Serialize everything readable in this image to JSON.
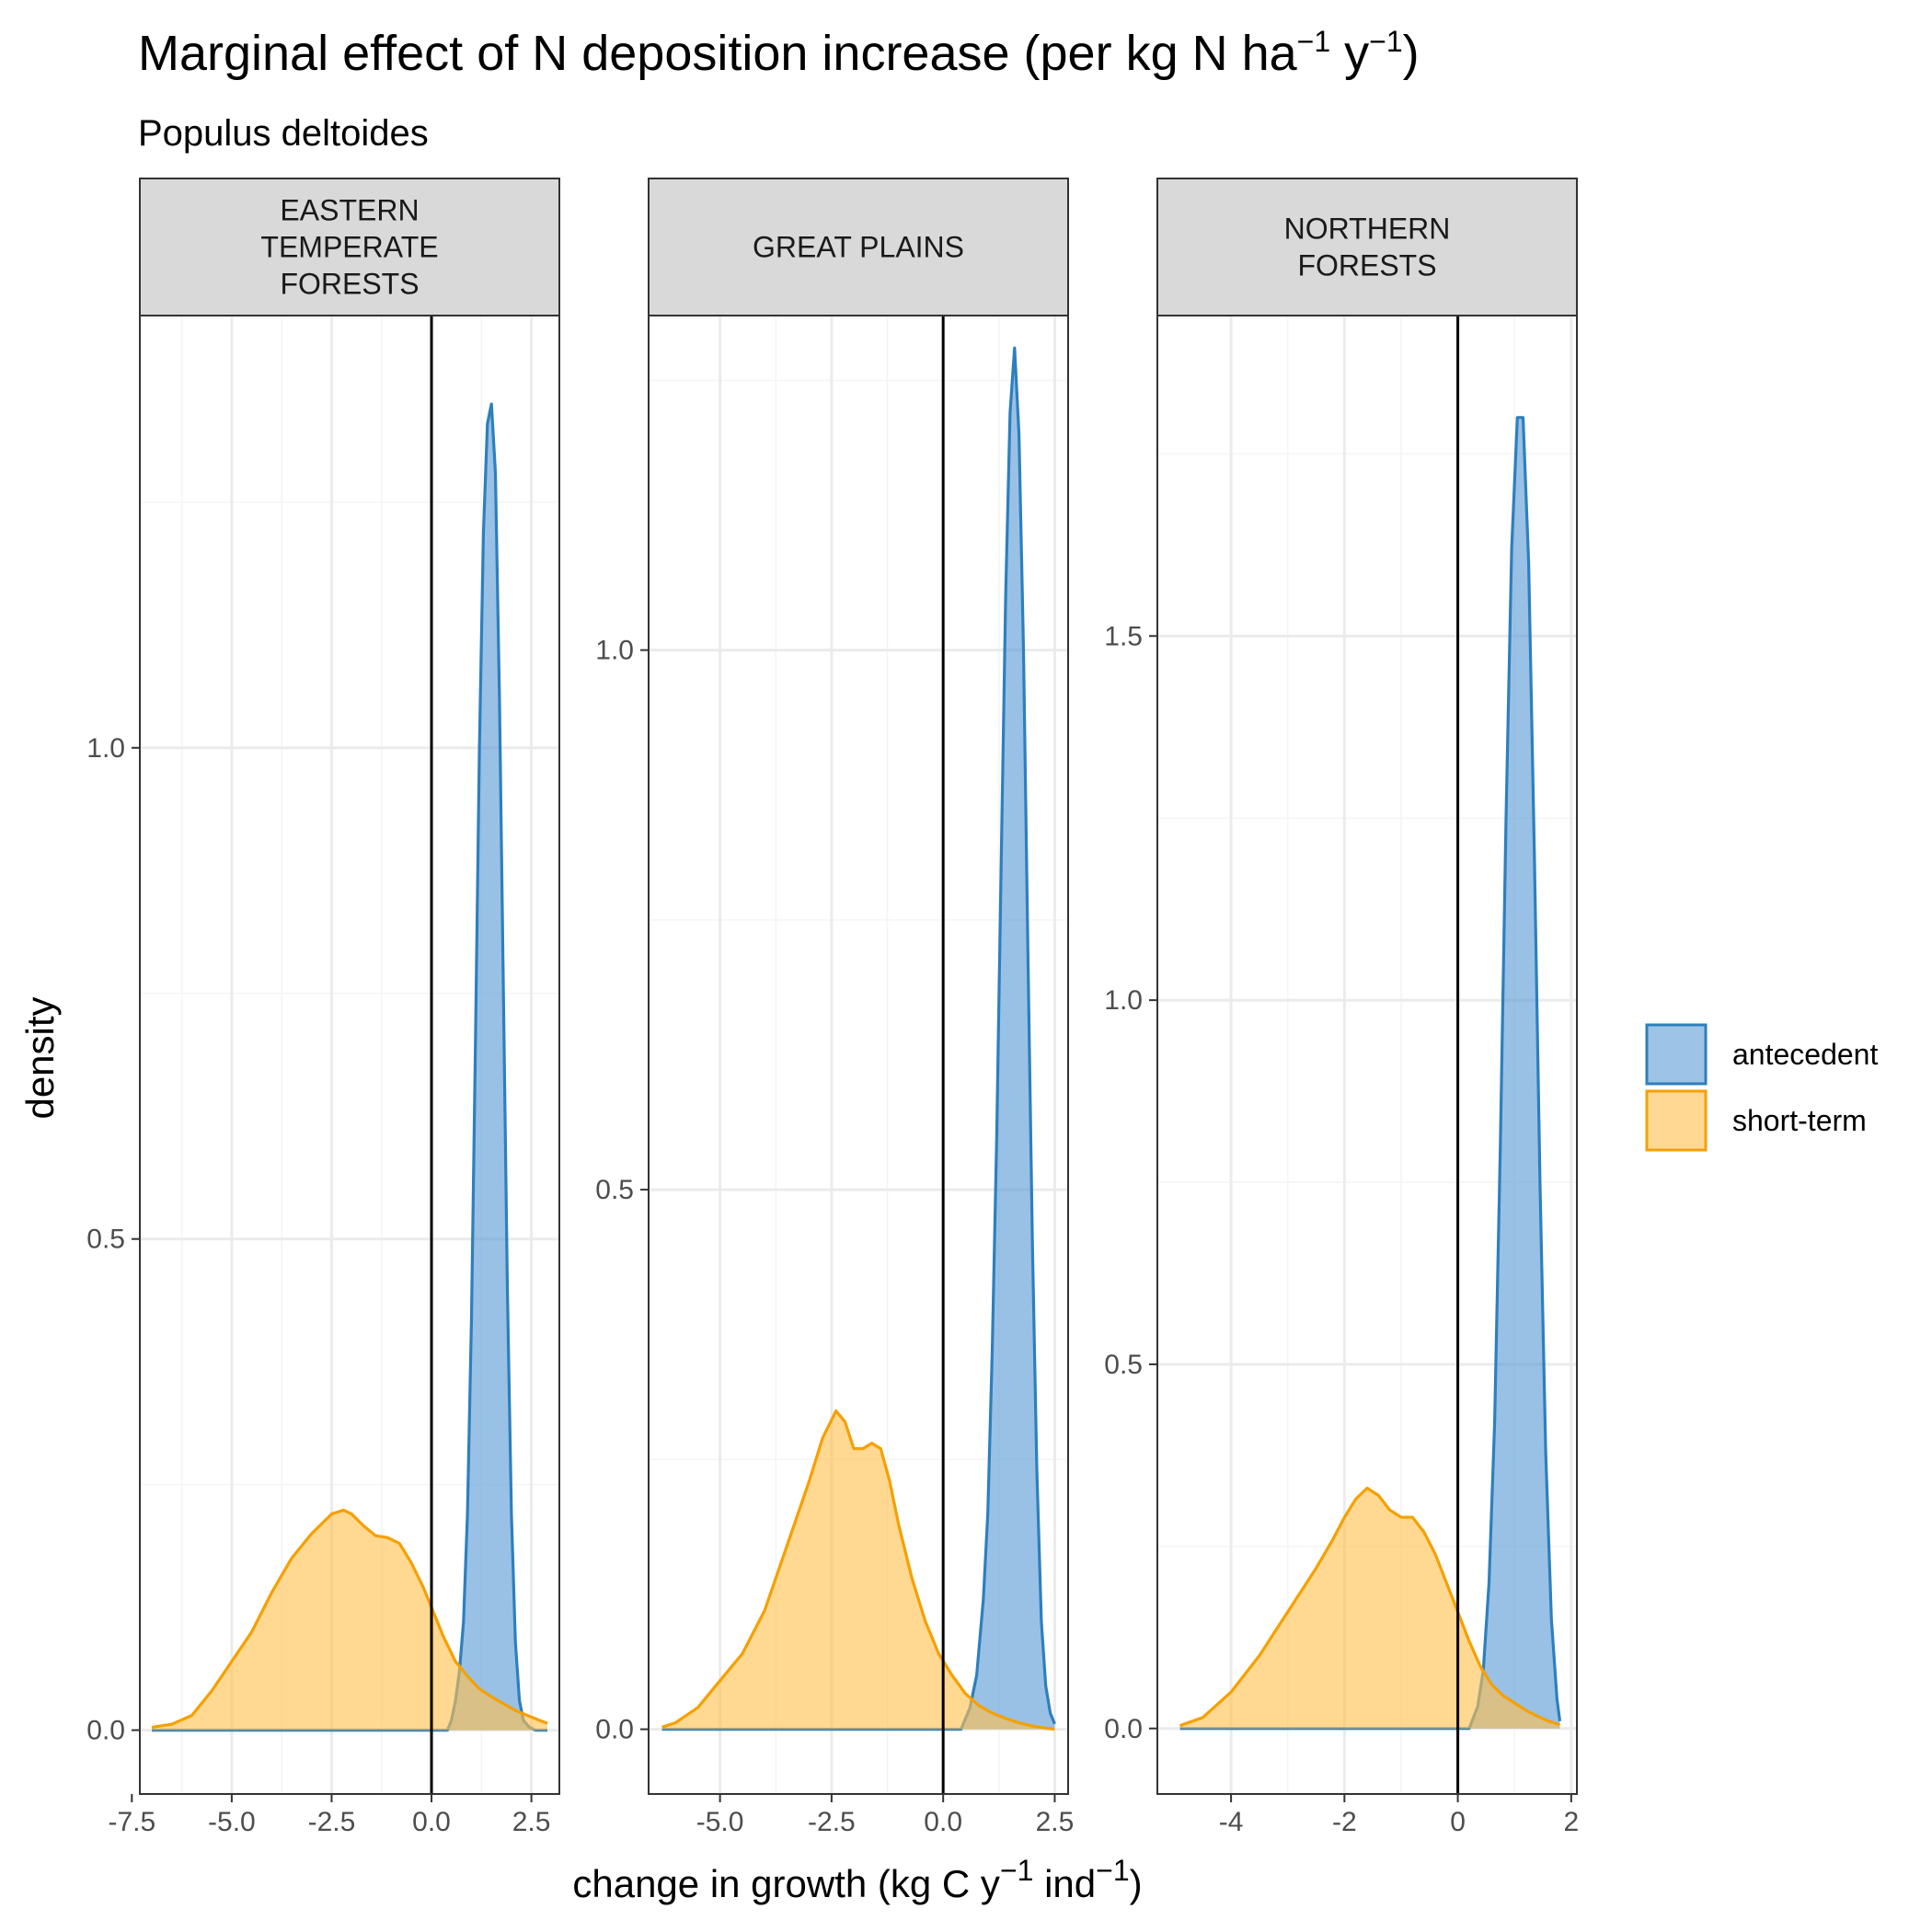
{
  "figure": {
    "title_main": "Marginal effect of N deposition increase (per kg N ha",
    "title_sup1": "−1",
    "title_mid": " y",
    "title_sup2": "−1",
    "title_end": ")",
    "subtitle": "Populus deltoides",
    "ylabel": "density",
    "xlabel_main": "change in growth (kg C y",
    "xlabel_sup1": "−1",
    "xlabel_mid": " ind",
    "xlabel_sup2": "−1",
    "xlabel_end": ")"
  },
  "legend": {
    "entries": [
      {
        "label": "antecedent",
        "fill": "#5b9bd5",
        "stroke": "#2e7fbd"
      },
      {
        "label": "short-term",
        "fill": "#ffc04d",
        "stroke": "#f5a000"
      }
    ]
  },
  "colors": {
    "antecedent_fill": "#5b9bd5",
    "antecedent_stroke": "#2e7fbd",
    "shortterm_fill": "#ffc04d",
    "shortterm_stroke": "#f5a000",
    "strip_bg": "#d9d9d9",
    "grid_major": "#ebebeb",
    "grid_minor": "#f4f4f4"
  },
  "chart_data": [
    {
      "type": "area",
      "panel": [
        "EASTERN",
        "TEMPERATE",
        "FORESTS"
      ],
      "xlim": [
        -7.3,
        3.2
      ],
      "ylim": [
        -0.065,
        1.44
      ],
      "xticks": [
        -7.5,
        -5.0,
        -2.5,
        0.0,
        2.5
      ],
      "xtick_labels": [
        "-7.5",
        "-5.0",
        "-2.5",
        "0.0",
        "2.5"
      ],
      "yticks": [
        0.0,
        0.5,
        1.0
      ],
      "ytick_labels": [
        "0.0",
        "0.5",
        "1.0"
      ],
      "vline": 0,
      "series": [
        {
          "name": "short-term",
          "x": [
            -7.0,
            -6.5,
            -6.0,
            -5.5,
            -5.0,
            -4.5,
            -4.0,
            -3.5,
            -3.0,
            -2.5,
            -2.2,
            -2.0,
            -1.7,
            -1.4,
            -1.1,
            -0.8,
            -0.5,
            -0.2,
            0.0,
            0.3,
            0.6,
            0.9,
            1.2,
            1.5,
            1.8,
            2.1,
            2.4,
            2.7,
            2.9
          ],
          "y": [
            0.003,
            0.006,
            0.015,
            0.04,
            0.07,
            0.1,
            0.14,
            0.175,
            0.2,
            0.22,
            0.224,
            0.22,
            0.208,
            0.198,
            0.196,
            0.19,
            0.17,
            0.145,
            0.125,
            0.095,
            0.07,
            0.055,
            0.042,
            0.034,
            0.027,
            0.02,
            0.015,
            0.01,
            0.007
          ]
        },
        {
          "name": "antecedent",
          "x": [
            -7.0,
            0.4,
            0.5,
            0.6,
            0.7,
            0.8,
            0.9,
            1.0,
            1.1,
            1.2,
            1.3,
            1.4,
            1.5,
            1.6,
            1.7,
            1.8,
            1.9,
            2.0,
            2.1,
            2.2,
            2.3,
            2.45,
            2.6,
            2.9
          ],
          "y": [
            0.0,
            0.0,
            0.01,
            0.03,
            0.06,
            0.11,
            0.22,
            0.42,
            0.7,
            1.0,
            1.22,
            1.33,
            1.35,
            1.28,
            1.05,
            0.75,
            0.45,
            0.22,
            0.09,
            0.03,
            0.01,
            0.003,
            0.0,
            0.0
          ]
        }
      ]
    },
    {
      "type": "area",
      "panel": [
        "GREAT PLAINS"
      ],
      "xlim": [
        -6.6,
        2.8
      ],
      "ylim": [
        -0.06,
        1.31
      ],
      "xticks": [
        -5.0,
        -2.5,
        0.0,
        2.5
      ],
      "xtick_labels": [
        "-5.0",
        "-2.5",
        "0.0",
        "2.5"
      ],
      "yticks": [
        0.0,
        0.5,
        1.0
      ],
      "ytick_labels": [
        "0.0",
        "0.5",
        "1.0"
      ],
      "vline": 0,
      "series": [
        {
          "name": "short-term",
          "x": [
            -6.3,
            -6.0,
            -5.5,
            -5.0,
            -4.5,
            -4.0,
            -3.5,
            -3.0,
            -2.7,
            -2.4,
            -2.2,
            -2.0,
            -1.8,
            -1.6,
            -1.4,
            -1.2,
            -1.0,
            -0.7,
            -0.4,
            -0.1,
            0.2,
            0.5,
            0.8,
            1.1,
            1.4,
            1.7,
            2.0,
            2.3,
            2.5
          ],
          "y": [
            0.002,
            0.006,
            0.02,
            0.045,
            0.07,
            0.11,
            0.17,
            0.23,
            0.27,
            0.295,
            0.285,
            0.26,
            0.26,
            0.265,
            0.26,
            0.23,
            0.19,
            0.14,
            0.1,
            0.07,
            0.05,
            0.033,
            0.022,
            0.015,
            0.01,
            0.006,
            0.003,
            0.001,
            0.0
          ]
        },
        {
          "name": "antecedent",
          "x": [
            -6.3,
            0.4,
            0.6,
            0.75,
            0.9,
            1.0,
            1.1,
            1.2,
            1.3,
            1.4,
            1.5,
            1.6,
            1.7,
            1.8,
            1.9,
            2.0,
            2.1,
            2.2,
            2.3,
            2.4,
            2.5
          ],
          "y": [
            0.0,
            0.0,
            0.02,
            0.05,
            0.12,
            0.2,
            0.35,
            0.55,
            0.8,
            1.05,
            1.22,
            1.28,
            1.2,
            1.0,
            0.72,
            0.45,
            0.24,
            0.1,
            0.04,
            0.015,
            0.005
          ]
        }
      ]
    },
    {
      "type": "area",
      "panel": [
        "NORTHERN",
        "FORESTS"
      ],
      "xlim": [
        -5.3,
        2.1
      ],
      "ylim": [
        -0.09,
        1.94
      ],
      "xticks": [
        -4,
        -2,
        0,
        2
      ],
      "xtick_labels": [
        "-4",
        "-2",
        "0",
        "2"
      ],
      "yticks": [
        0.0,
        0.5,
        1.0,
        1.5
      ],
      "ytick_labels": [
        "0.0",
        "0.5",
        "1.0",
        "1.5"
      ],
      "vline": 0,
      "series": [
        {
          "name": "short-term",
          "x": [
            -4.9,
            -4.5,
            -4.0,
            -3.5,
            -3.0,
            -2.5,
            -2.2,
            -2.0,
            -1.8,
            -1.6,
            -1.4,
            -1.2,
            -1.0,
            -0.8,
            -0.6,
            -0.4,
            -0.2,
            0.0,
            0.2,
            0.4,
            0.6,
            0.8,
            1.0,
            1.2,
            1.4,
            1.6,
            1.8
          ],
          "y": [
            0.004,
            0.015,
            0.05,
            0.1,
            0.16,
            0.22,
            0.26,
            0.29,
            0.315,
            0.33,
            0.32,
            0.3,
            0.29,
            0.29,
            0.27,
            0.24,
            0.2,
            0.16,
            0.12,
            0.085,
            0.06,
            0.045,
            0.035,
            0.025,
            0.017,
            0.01,
            0.005
          ]
        },
        {
          "name": "antecedent",
          "x": [
            -4.9,
            0.2,
            0.35,
            0.45,
            0.55,
            0.65,
            0.75,
            0.85,
            0.95,
            1.05,
            1.15,
            1.25,
            1.35,
            1.45,
            1.55,
            1.65,
            1.75,
            1.8
          ],
          "y": [
            0.0,
            0.0,
            0.03,
            0.08,
            0.2,
            0.42,
            0.8,
            1.25,
            1.62,
            1.8,
            1.8,
            1.6,
            1.2,
            0.75,
            0.38,
            0.15,
            0.04,
            0.01
          ]
        }
      ]
    }
  ]
}
